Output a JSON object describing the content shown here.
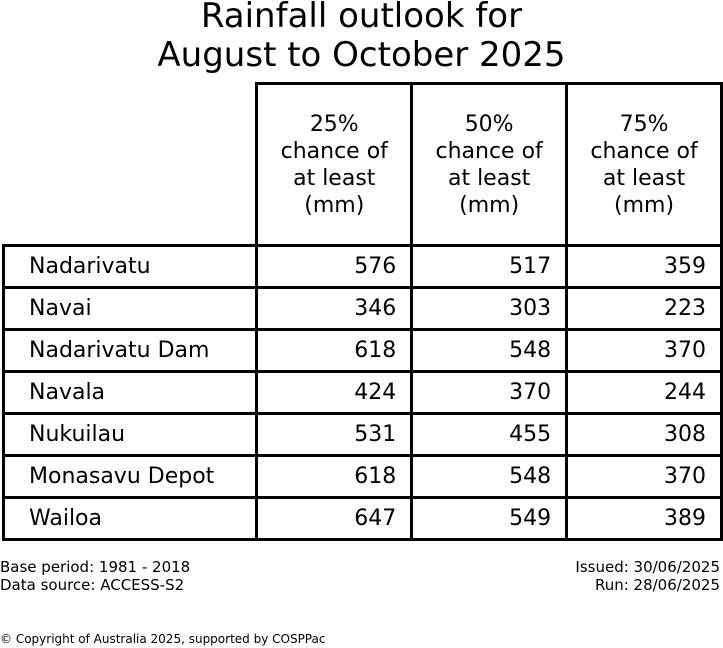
{
  "chart_data": {
    "type": "table",
    "title_lines": [
      "Rainfall outlook for",
      "August to October 2025"
    ],
    "columns": [
      [
        "25%",
        "chance of",
        "at least",
        "(mm)"
      ],
      [
        "50%",
        "chance of",
        "at least",
        "(mm)"
      ],
      [
        "75%",
        "chance of",
        "at least",
        "(mm)"
      ]
    ],
    "rows": [
      {
        "name": "Nadarivatu",
        "values": [
          576,
          517,
          359
        ]
      },
      {
        "name": "Navai",
        "values": [
          346,
          303,
          223
        ]
      },
      {
        "name": "Nadarivatu Dam",
        "values": [
          618,
          548,
          370
        ]
      },
      {
        "name": "Navala",
        "values": [
          424,
          370,
          244
        ]
      },
      {
        "name": "Nukuilau",
        "values": [
          531,
          455,
          308
        ]
      },
      {
        "name": "Monasavu Depot",
        "values": [
          618,
          548,
          370
        ]
      },
      {
        "name": "Wailoa",
        "values": [
          647,
          549,
          389
        ]
      }
    ]
  },
  "footer": {
    "base_period": "Base period: 1981 - 2018",
    "data_source": "Data source: ACCESS-S2",
    "issued": "Issued: 30/06/2025",
    "run": "Run: 28/06/2025",
    "copyright": "© Copyright of Australia 2025, supported by COSPPac"
  }
}
